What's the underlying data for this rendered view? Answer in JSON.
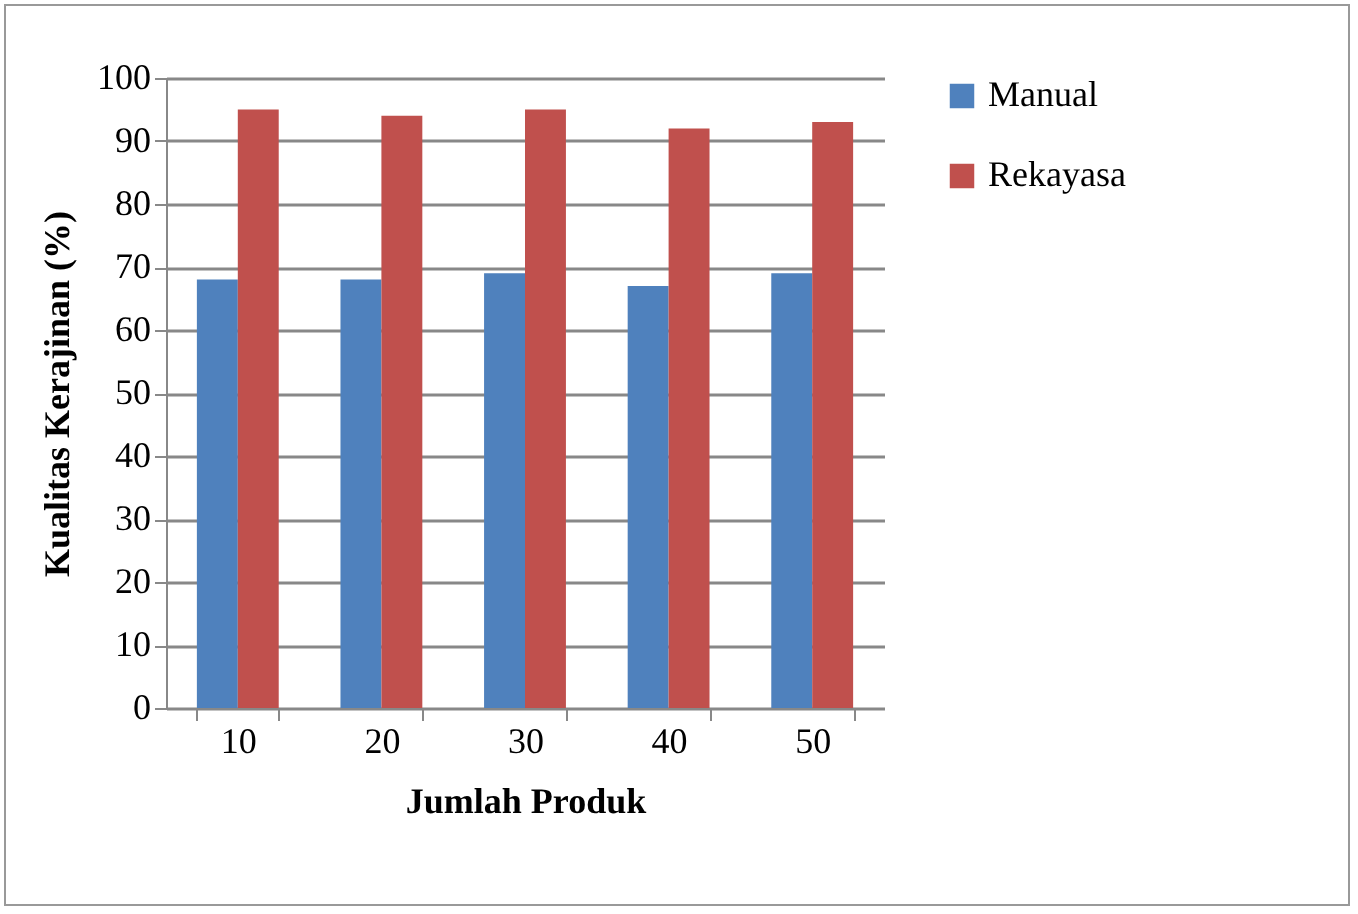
{
  "chart_data": {
    "type": "bar",
    "xlabel": "Jumlah Produk",
    "ylabel": "Kualitas Kerajinan (%)",
    "categories": [
      "10",
      "20",
      "30",
      "40",
      "50"
    ],
    "series": [
      {
        "name": "Manual",
        "color": "#4f81bd",
        "values": [
          68,
          68,
          69,
          67,
          69
        ]
      },
      {
        "name": "Rekayasa",
        "color": "#c0504d",
        "values": [
          95,
          94,
          95,
          92,
          93
        ]
      }
    ],
    "ylim": [
      0,
      100
    ],
    "yticks": [
      0,
      10,
      20,
      30,
      40,
      50,
      60,
      70,
      80,
      90,
      100
    ],
    "grid": "y",
    "legend": "right"
  }
}
